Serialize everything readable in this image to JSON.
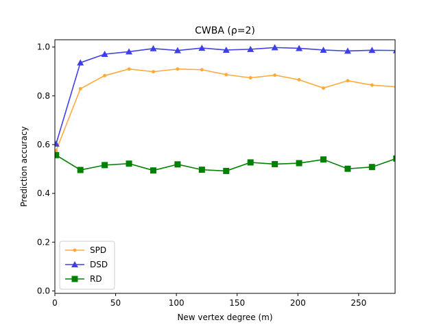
{
  "chart_data": {
    "type": "line",
    "title": "CWBA (ρ=2)",
    "xlabel": "New vertex degree (m)",
    "ylabel": "Prediction accuracy",
    "xlim": [
      0,
      280
    ],
    "ylim": [
      -0.01,
      1.03
    ],
    "xticks": [
      0,
      50,
      100,
      150,
      200,
      250
    ],
    "xtick_labels": [
      "0",
      "50",
      "100",
      "150",
      "200",
      "250"
    ],
    "yticks": [
      0.0,
      0.2,
      0.4,
      0.6,
      0.8,
      1.0
    ],
    "ytick_labels": [
      "0.0",
      "0.2",
      "0.4",
      "0.6",
      "0.8",
      "1.0"
    ],
    "grid": false,
    "legend_position": "lower-left",
    "x": [
      1,
      21,
      41,
      61,
      81,
      101,
      121,
      141,
      161,
      181,
      201,
      221,
      241,
      261,
      281
    ],
    "series": [
      {
        "name": "SPD",
        "color": "#ffa93a",
        "marker": "dot",
        "values": [
          0.575,
          0.829,
          0.883,
          0.91,
          0.899,
          0.91,
          0.907,
          0.887,
          0.874,
          0.885,
          0.866,
          0.832,
          0.862,
          0.844,
          0.837
        ]
      },
      {
        "name": "DSD",
        "color": "#3f3fe8",
        "marker": "triangle",
        "values": [
          0.603,
          0.936,
          0.971,
          0.981,
          0.994,
          0.986,
          0.996,
          0.988,
          0.991,
          0.998,
          0.995,
          0.988,
          0.984,
          0.987,
          0.986
        ]
      },
      {
        "name": "RD",
        "color": "#008000",
        "marker": "square",
        "values": [
          0.557,
          0.496,
          0.516,
          0.522,
          0.494,
          0.519,
          0.497,
          0.492,
          0.527,
          0.52,
          0.524,
          0.539,
          0.501,
          0.508,
          0.543
        ]
      }
    ]
  }
}
